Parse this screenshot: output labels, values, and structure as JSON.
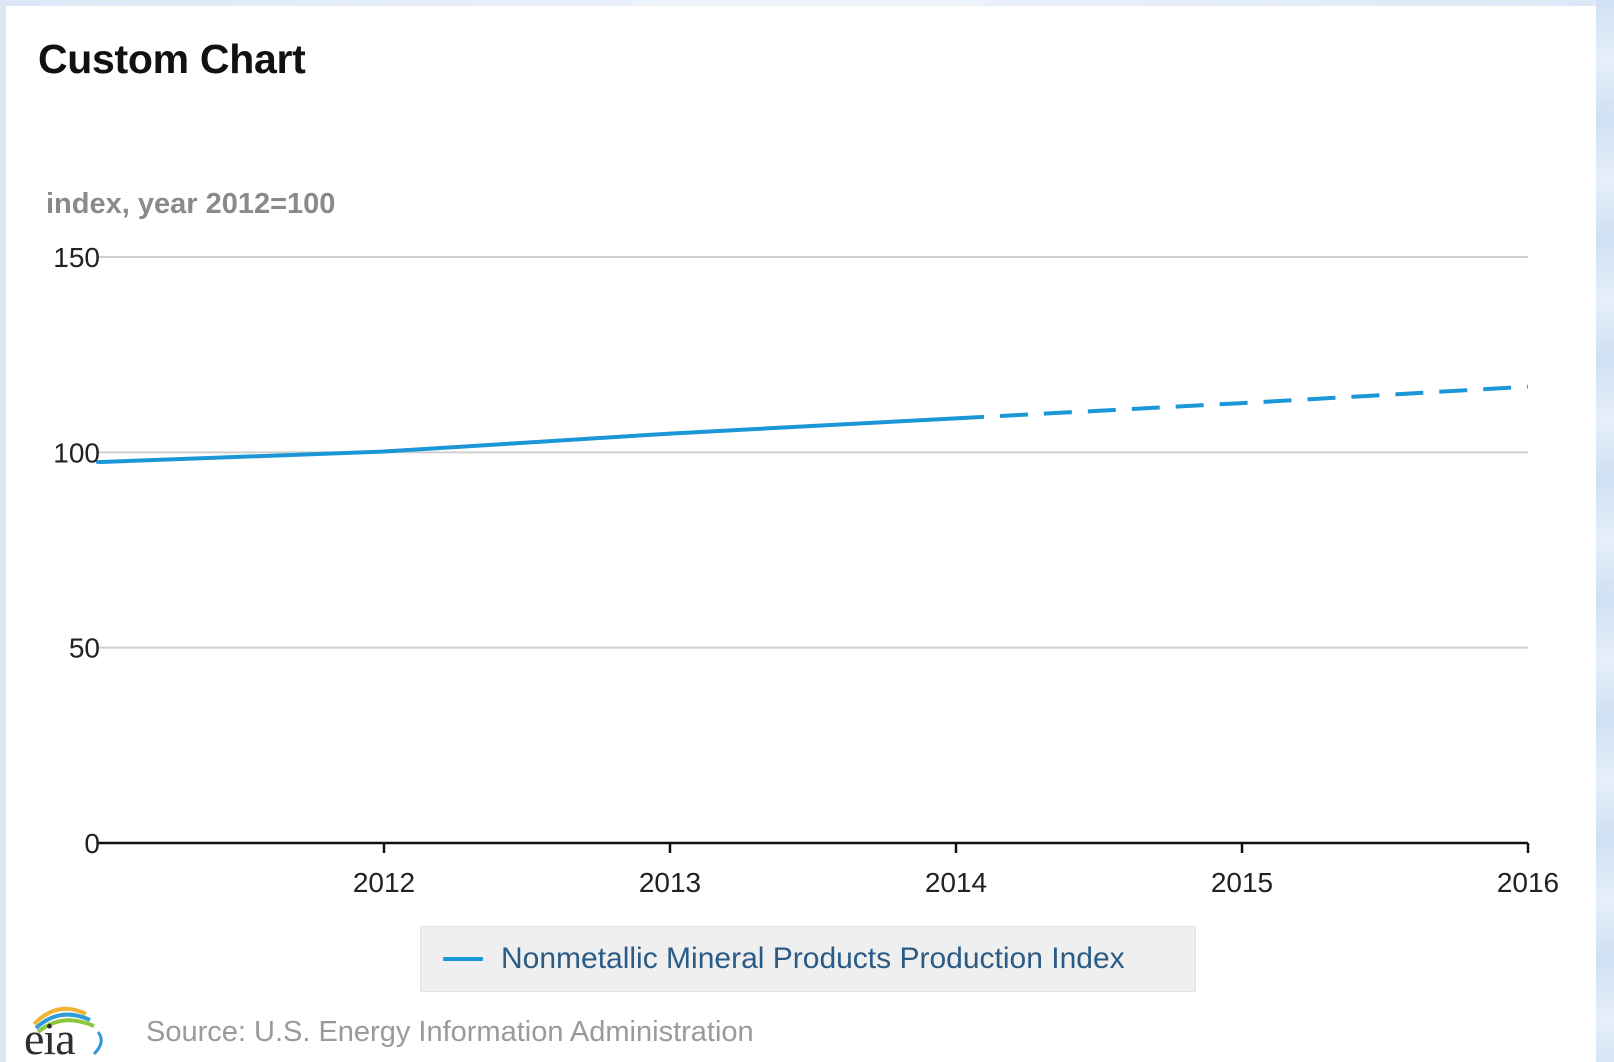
{
  "header": {
    "title": "Custom Chart"
  },
  "chart_data": {
    "type": "line",
    "ylabel": "index, year 2012=100",
    "xlabel": "",
    "ylim": [
      0,
      150
    ],
    "yticks": [
      0,
      50,
      100,
      150
    ],
    "xlim": [
      2011,
      2016
    ],
    "xticks": [
      2012,
      2013,
      2014,
      2015,
      2016
    ],
    "grid": true,
    "legend_position": "bottom",
    "series": [
      {
        "name": "Nonmetallic Mineral Products Production Index",
        "color": "#1b96d6",
        "points": [
          {
            "x": 2011,
            "y": 97.5
          },
          {
            "x": 2012,
            "y": 100.2
          },
          {
            "x": 2013,
            "y": 104.8
          },
          {
            "x": 2014,
            "y": 108.7
          }
        ],
        "forecast_points": [
          {
            "x": 2014,
            "y": 108.7
          },
          {
            "x": 2015,
            "y": 112.6
          },
          {
            "x": 2016,
            "y": 116.8
          }
        ]
      }
    ]
  },
  "legend": {
    "items": [
      {
        "label": "Nonmetallic Mineral Products Production Index",
        "color": "#1b96d6"
      }
    ]
  },
  "footer": {
    "logo_text": "eia",
    "source": "Source: U.S. Energy Information Administration"
  }
}
